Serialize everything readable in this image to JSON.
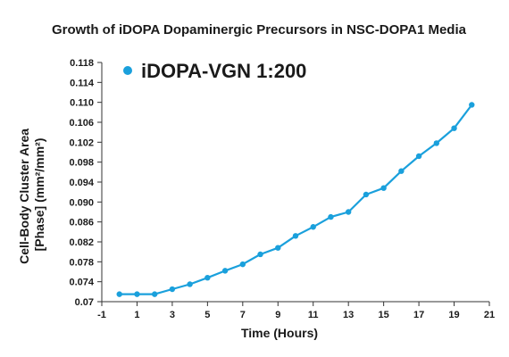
{
  "chart_data": {
    "type": "line",
    "title": "Growth of iDOPA Dopaminergic Precursors in NSC-DOPA1 Media",
    "xlabel": "Time (Hours)",
    "ylabel_line1": "Cell-Body Cluster Area",
    "ylabel_line2": "[Phase] (mm²/mm²)",
    "xlim": [
      -1,
      21
    ],
    "ylim": [
      0.07,
      0.118
    ],
    "x_ticks": [
      -1,
      1,
      3,
      5,
      7,
      9,
      11,
      13,
      15,
      17,
      19,
      21
    ],
    "x_tick_labels": [
      "-1",
      "1",
      "3",
      "5",
      "7",
      "9",
      "11",
      "13",
      "15",
      "17",
      "19",
      "21"
    ],
    "y_ticks": [
      0.07,
      0.074,
      0.078,
      0.082,
      0.086,
      0.09,
      0.094,
      0.098,
      0.102,
      0.106,
      0.11,
      0.114,
      0.118
    ],
    "y_tick_labels": [
      "0.07",
      "0.074",
      "0.078",
      "0.082",
      "0.086",
      "0.090",
      "0.094",
      "0.098",
      "0.102",
      "0.106",
      "0.110",
      "0.114",
      "0.118"
    ],
    "grid": false,
    "legend_position": "top-left",
    "colors": {
      "series": "#1aa0dc",
      "axis": "#333333"
    },
    "series": [
      {
        "name": "iDOPA-VGN 1:200",
        "x": [
          0,
          1,
          2,
          3,
          4,
          5,
          6,
          7,
          8,
          9,
          10,
          11,
          12,
          13,
          14,
          15,
          16,
          17,
          18,
          19,
          20
        ],
        "y": [
          0.0715,
          0.0715,
          0.0715,
          0.0725,
          0.0735,
          0.0748,
          0.0762,
          0.0775,
          0.0795,
          0.0808,
          0.0832,
          0.085,
          0.087,
          0.088,
          0.0915,
          0.0928,
          0.0962,
          0.0992,
          0.1018,
          0.1048,
          0.1095
        ]
      }
    ]
  }
}
